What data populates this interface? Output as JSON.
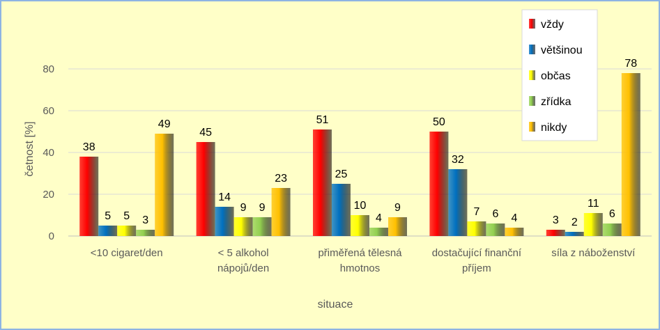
{
  "chart_data": {
    "type": "bar",
    "title": "",
    "xlabel": "situace",
    "ylabel": "četnost [%]",
    "ylim": [
      0,
      80
    ],
    "yticks": [
      0,
      20,
      40,
      60,
      80
    ],
    "grid": true,
    "legend_position": "top-right",
    "categories": [
      [
        "<10 cigaret/den"
      ],
      [
        "< 5 alkohol",
        "nápojů/den"
      ],
      [
        "přiměřená tělesná",
        "hmotnos"
      ],
      [
        "dostačující finanční",
        "příjem"
      ],
      [
        "síla z náboženství"
      ]
    ],
    "series": [
      {
        "name": "vždy",
        "color": "#FF0000",
        "values": [
          38,
          45,
          51,
          50,
          3
        ]
      },
      {
        "name": "většinou",
        "color": "#0070C0",
        "values": [
          5,
          14,
          25,
          32,
          2
        ]
      },
      {
        "name": "občas",
        "color": "#FFFF00",
        "values": [
          5,
          9,
          10,
          7,
          11
        ]
      },
      {
        "name": "zřídka",
        "color": "#92D050",
        "values": [
          3,
          9,
          4,
          6,
          6
        ]
      },
      {
        "name": "nikdy",
        "color": "#FFC000",
        "values": [
          49,
          23,
          9,
          4,
          78
        ]
      }
    ]
  }
}
